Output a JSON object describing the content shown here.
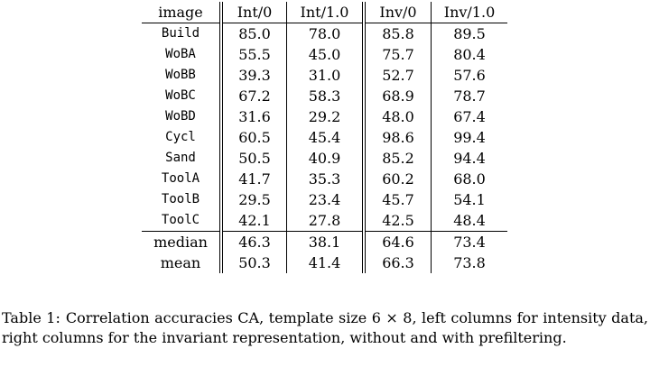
{
  "table": {
    "headers": [
      "image",
      "Int/0",
      "Int/1.0",
      "Inv/0",
      "Inv/1.0"
    ],
    "rows": [
      [
        "Build",
        "85.0",
        "78.0",
        "85.8",
        "89.5"
      ],
      [
        "WoBA",
        "55.5",
        "45.0",
        "75.7",
        "80.4"
      ],
      [
        "WoBB",
        "39.3",
        "31.0",
        "52.7",
        "57.6"
      ],
      [
        "WoBC",
        "67.2",
        "58.3",
        "68.9",
        "78.7"
      ],
      [
        "WoBD",
        "31.6",
        "29.2",
        "48.0",
        "67.4"
      ],
      [
        "Cycl",
        "60.5",
        "45.4",
        "98.6",
        "99.4"
      ],
      [
        "Sand",
        "50.5",
        "40.9",
        "85.2",
        "94.4"
      ],
      [
        "ToolA",
        "41.7",
        "35.3",
        "60.2",
        "68.0"
      ],
      [
        "ToolB",
        "29.5",
        "23.4",
        "45.7",
        "54.1"
      ],
      [
        "ToolC",
        "42.1",
        "27.8",
        "42.5",
        "48.4"
      ]
    ],
    "summary": [
      [
        "median",
        "46.3",
        "38.1",
        "64.6",
        "73.4"
      ],
      [
        "mean",
        "50.3",
        "41.4",
        "66.3",
        "73.8"
      ]
    ]
  },
  "caption": {
    "label": "Table 1:",
    "text": "Correlation accuracies CA, template size 6 × 8, left columns for intensity data, right columns for the invariant representation, without and with prefiltering."
  }
}
